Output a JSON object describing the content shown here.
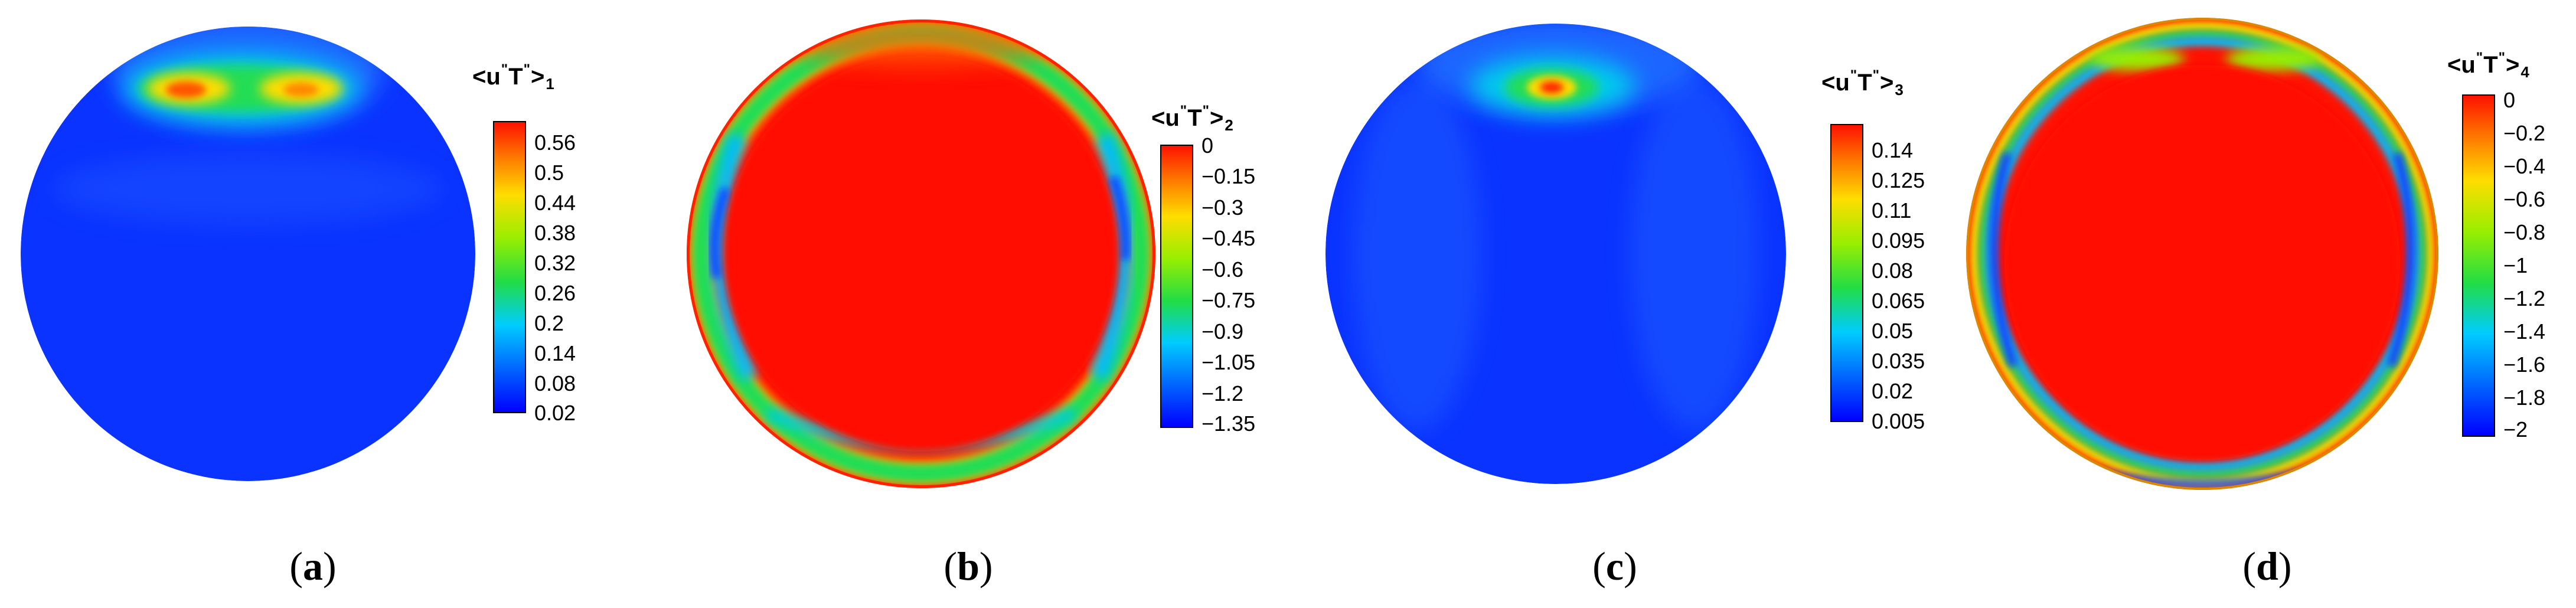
{
  "panels": [
    {
      "caption_letter": "a",
      "colorbar": {
        "title_main": "<u",
        "title_mid": "T",
        "title_end": ">",
        "title_sub": "1",
        "ticks": [
          "0.56",
          "0.5",
          "0.44",
          "0.38",
          "0.32",
          "0.26",
          "0.2",
          "0.14",
          "0.08",
          "0.02"
        ]
      }
    },
    {
      "caption_letter": "b",
      "colorbar": {
        "title_main": "<u",
        "title_mid": "T",
        "title_end": ">",
        "title_sub": "2",
        "ticks": [
          "0",
          "−0.15",
          "−0.3",
          "−0.45",
          "−0.6",
          "−0.75",
          "−0.9",
          "−1.05",
          "−1.2",
          "−1.35"
        ]
      }
    },
    {
      "caption_letter": "c",
      "colorbar": {
        "title_main": "<u",
        "title_mid": "T",
        "title_end": ">",
        "title_sub": "3",
        "ticks": [
          "0.14",
          "0.125",
          "0.11",
          "0.095",
          "0.08",
          "0.065",
          "0.05",
          "0.035",
          "0.02",
          "0.005"
        ]
      }
    },
    {
      "caption_letter": "d",
      "colorbar": {
        "title_main": "<u",
        "title_mid": "T",
        "title_end": ">",
        "title_sub": "4",
        "ticks": [
          "0",
          "−0.2",
          "−0.4",
          "−0.6",
          "−0.8",
          "−1",
          "−1.2",
          "−1.4",
          "−1.6",
          "−1.8",
          "−2"
        ]
      }
    }
  ],
  "colors": {
    "jet_low": "#0033ff",
    "jet_mid": "#22dd22",
    "jet_high": "#ff1100"
  }
}
